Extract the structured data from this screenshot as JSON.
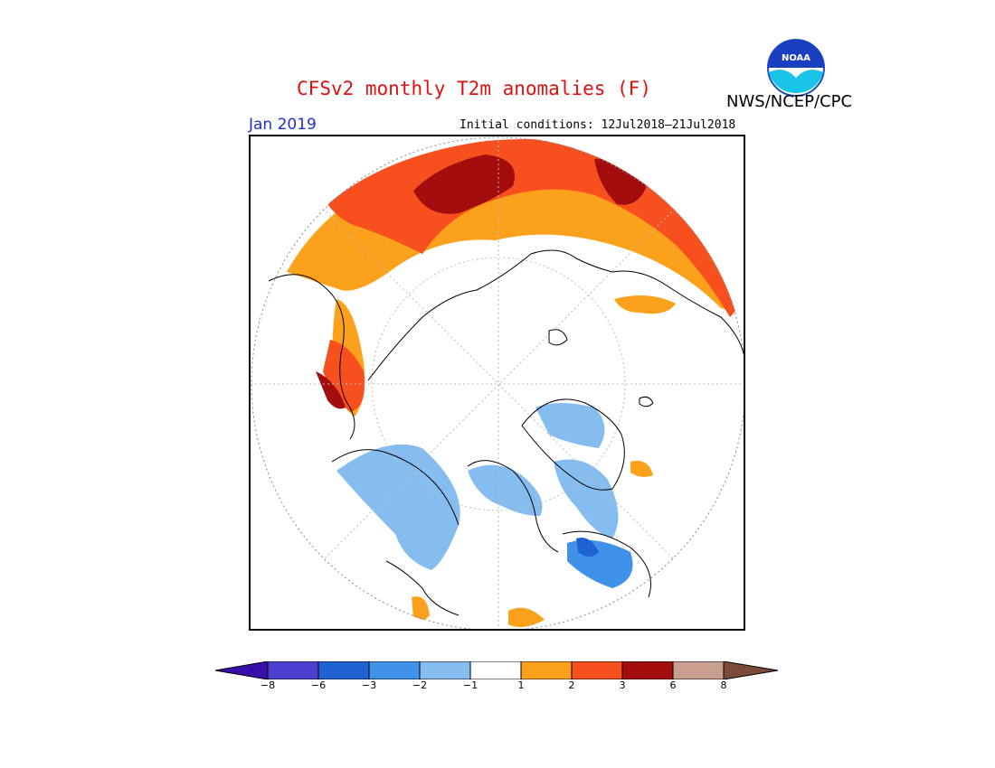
{
  "header": {
    "title": "CFSv2 monthly T2m anomalies (F)",
    "agency": "NWS/NCEP/CPC",
    "month": "Jan 2019",
    "initial_conditions": "Initial conditions: 12Jul2018–21Jul2018"
  },
  "logo": {
    "text": "NOAA",
    "icon": "noaa-logo"
  },
  "legend": {
    "colors": [
      "#3a0ea8",
      "#4c3fd0",
      "#1f62d4",
      "#3f92e8",
      "#86bdf0",
      "#ffffff",
      "#fba11b",
      "#f7501e",
      "#a40d0d",
      "#c9a090",
      "#7b4a3a"
    ],
    "labels": [
      "−8",
      "−6",
      "−3",
      "−2",
      "−1",
      "1",
      "2",
      "3",
      "6",
      "8"
    ]
  },
  "colors": {
    "title": "#e01010",
    "month": "#2030d0",
    "orange": "#fba11b",
    "red_orange": "#f7501e",
    "dark_red": "#a40d0d",
    "light_blue": "#86bdf0",
    "mid_blue": "#3f92e8",
    "blue": "#1f62d4"
  },
  "map": {
    "projection": "polar stereographic",
    "region": "Northern Hemisphere"
  }
}
